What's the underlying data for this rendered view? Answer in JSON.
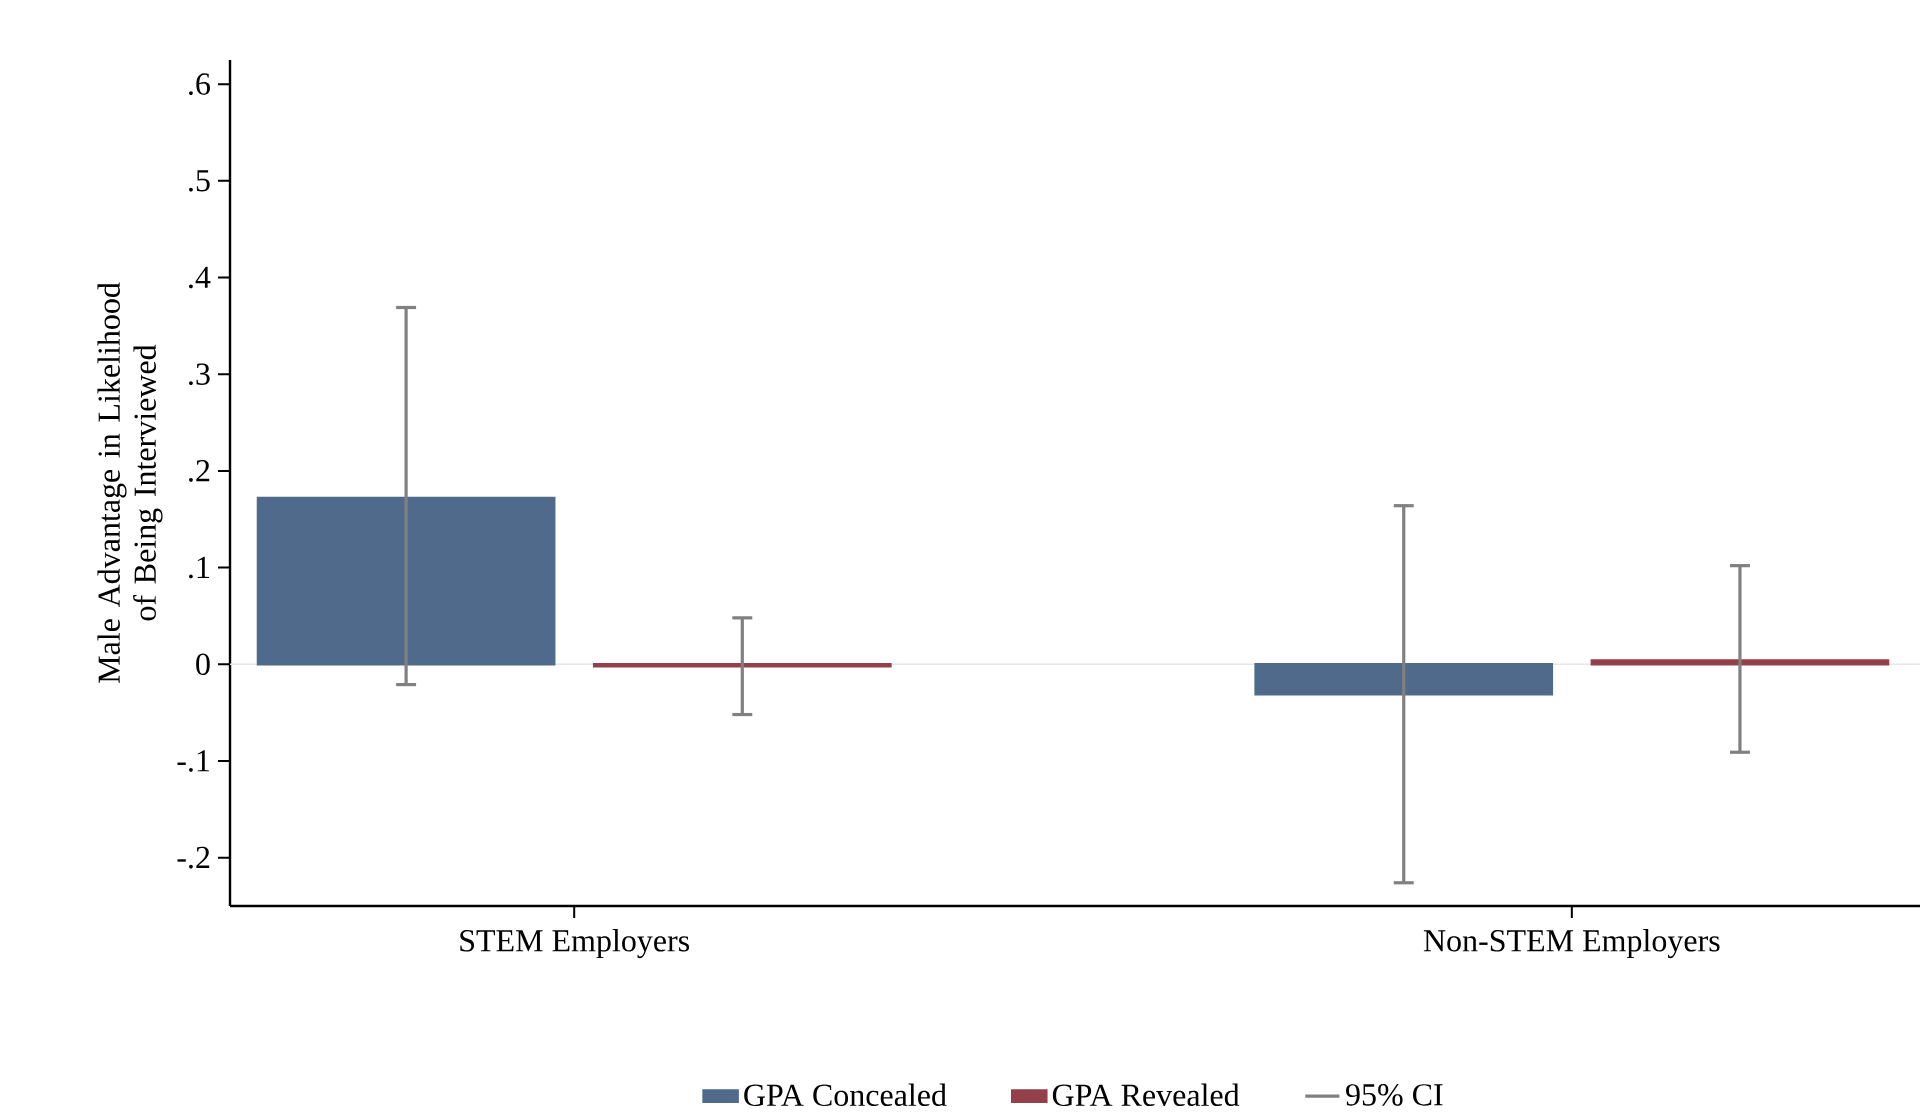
{
  "chart_data": {
    "type": "bar",
    "ylabel": "Male Advantage in Likelihood of Being Interviewed",
    "categories": [
      "STEM Employers",
      "Non-STEM Employers"
    ],
    "series": [
      {
        "name": "GPA Concealed",
        "color": "#4f6a8a",
        "values": [
          0.172,
          -0.031
        ],
        "errors": [
          [
            -0.021,
            0.369
          ],
          [
            -0.226,
            0.164
          ]
        ]
      },
      {
        "name": "GPA Revealed",
        "color": "#93404a",
        "values": [
          -0.002,
          0.004
        ],
        "errors": [
          [
            -0.052,
            0.048
          ],
          [
            -0.091,
            0.102
          ]
        ]
      }
    ],
    "ylim": [
      -0.25,
      0.625
    ],
    "yticks": [
      {
        "value": -0.2,
        "label": "-.2"
      },
      {
        "value": -0.1,
        "label": "-.1"
      },
      0,
      {
        "value": 0.1,
        "label": ".1"
      },
      {
        "value": 0.2,
        "label": ".2"
      },
      {
        "value": 0.3,
        "label": ".3"
      },
      {
        "value": 0.4,
        "label": ".4"
      },
      {
        "value": 0.5,
        "label": ".5"
      },
      {
        "value": 0.6,
        "label": ".6"
      }
    ],
    "ref_lines": [
      {
        "axis": "y",
        "value": 0,
        "color": "#e6e6e6"
      }
    ],
    "annotations": [
      "95% CI"
    ],
    "legend": "bottom",
    "grid": false
  }
}
